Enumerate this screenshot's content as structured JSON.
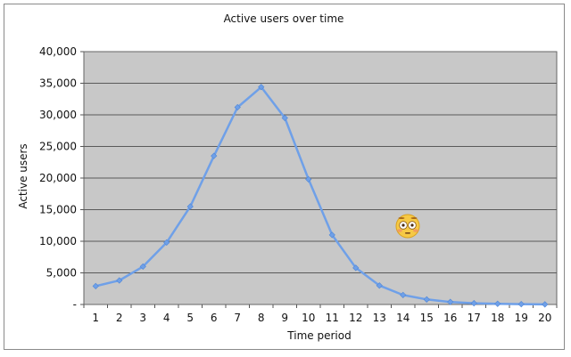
{
  "chart_data": {
    "type": "line",
    "title": "Active users over time",
    "xlabel": "Time period",
    "ylabel": "Active users",
    "categories": [
      "1",
      "2",
      "3",
      "4",
      "5",
      "6",
      "7",
      "8",
      "9",
      "10",
      "11",
      "12",
      "13",
      "14",
      "15",
      "16",
      "17",
      "18",
      "19",
      "20"
    ],
    "series": [
      {
        "values": [
          2900,
          3800,
          6000,
          9800,
          15500,
          23500,
          31200,
          34400,
          29500,
          19800,
          11000,
          5800,
          3000,
          1500,
          800,
          400,
          200,
          100,
          50,
          20
        ],
        "color": "#6fa0e8"
      }
    ],
    "ylim": [
      0,
      40000
    ],
    "yticks": [
      "-",
      "5,000",
      "10,000",
      "15,000",
      "20,000",
      "25,000",
      "30,000",
      "35,000",
      "40,000"
    ],
    "grid": true,
    "plot_background": "#c8c8c8",
    "annotation_icon": "flushed-face-emoji"
  }
}
